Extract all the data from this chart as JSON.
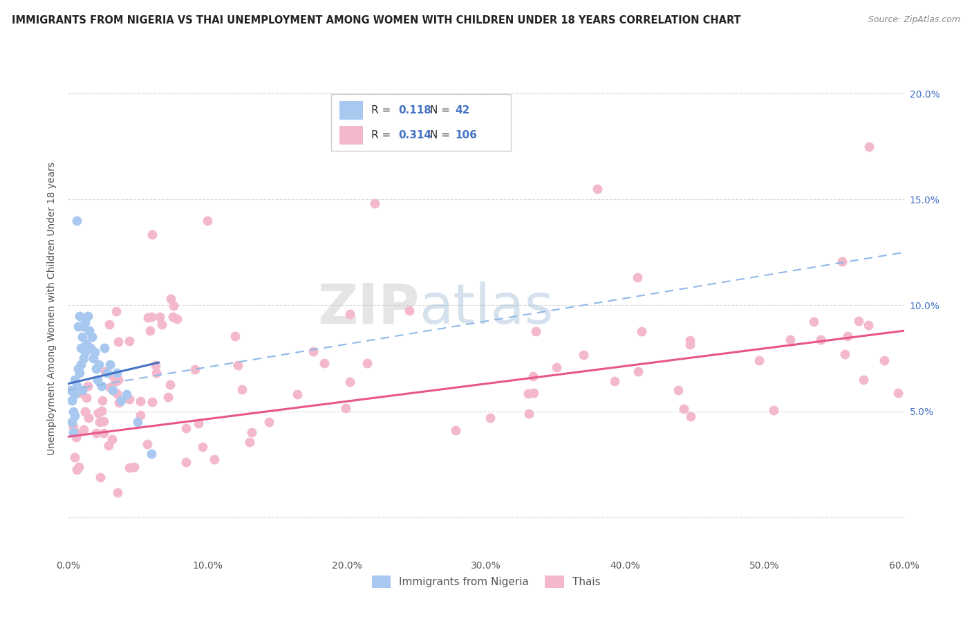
{
  "title": "IMMIGRANTS FROM NIGERIA VS THAI UNEMPLOYMENT AMONG WOMEN WITH CHILDREN UNDER 18 YEARS CORRELATION CHART",
  "source": "Source: ZipAtlas.com",
  "ylabel": "Unemployment Among Women with Children Under 18 years",
  "legend_blue_r": "R = ",
  "legend_blue_r_val": "0.118",
  "legend_blue_n": "N = ",
  "legend_blue_n_val": "42",
  "legend_pink_r": "R = ",
  "legend_pink_r_val": "0.314",
  "legend_pink_n": "N = ",
  "legend_pink_n_val": "106",
  "legend_label_blue": "Immigrants from Nigeria",
  "legend_label_pink": "Thais",
  "xlim": [
    0,
    0.6
  ],
  "ylim": [
    -0.018,
    0.215
  ],
  "blue_color": "#a8c8f0",
  "pink_color": "#f4b8cc",
  "blue_line_color": "#4472c4",
  "pink_line_color": "#e8558a",
  "dash_line_color": "#90b8e8",
  "watermark_zip": "ZIP",
  "watermark_atlas": "atlas",
  "background_color": "#ffffff",
  "grid_color": "#d8d8d8",
  "title_color": "#222222",
  "source_color": "#888888",
  "ytick_color": "#4472c4",
  "xtick_color": "#555555"
}
